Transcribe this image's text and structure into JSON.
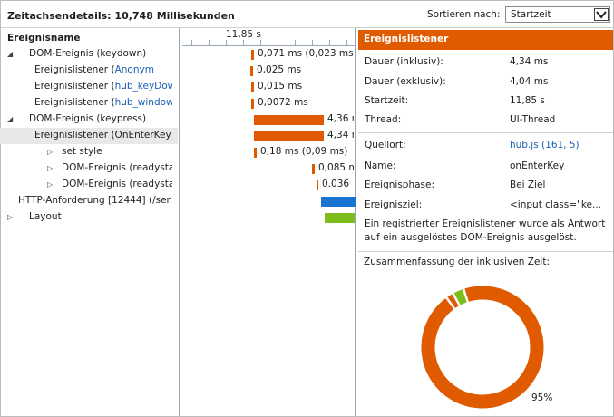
{
  "header": {
    "title": "Zeitachsendetails: 10,748 Millisekunden",
    "sort_label": "Sortieren nach:",
    "sort_value": "Startzeit"
  },
  "tree": {
    "column_header": "Ereignisname",
    "ruler_label": "11,85 s",
    "rows": [
      {
        "toggle": "◢",
        "indent": 0,
        "text": "DOM-Ereignis (keydown)",
        "link": "",
        "bar_label": "0,071 ms (0,023 ms)",
        "bar_color": "#e05a00"
      },
      {
        "toggle": "",
        "indent": 1,
        "text": "Ereignislistener (",
        "link": "Anonym",
        "bar_label": "0,025 ms",
        "bar_color": "#e05a00"
      },
      {
        "toggle": "",
        "indent": 1,
        "text": "Ereignislistener (",
        "link": "hub_keyDow...",
        "bar_label": "0,015 ms",
        "bar_color": "#e05a00"
      },
      {
        "toggle": "",
        "indent": 1,
        "text": "Ereignislistener (",
        "link": "hub_window...",
        "bar_label": "0,0072 ms",
        "bar_color": "#e05a00"
      },
      {
        "toggle": "◢",
        "indent": 0,
        "text": "DOM-Ereignis (keypress)",
        "link": "",
        "bar_label": "4,36 m",
        "bar_color": "#e05a00"
      },
      {
        "toggle": "",
        "indent": 1,
        "text": "Ereignislistener (OnEnterKey)",
        "link": "",
        "bar_label": "4,34 m",
        "bar_color": "#e05a00"
      },
      {
        "toggle": "▷",
        "indent": 2,
        "text": "set style",
        "link": "",
        "bar_label": "0,18 ms (0,09 ms)",
        "bar_color": "#e05a00"
      },
      {
        "toggle": "▷",
        "indent": 2,
        "text": "DOM-Ereignis (readystate...",
        "link": "",
        "bar_label": "0,085 m",
        "bar_color": "#e05a00"
      },
      {
        "toggle": "▷",
        "indent": 2,
        "text": "DOM-Ereignis (readystate...",
        "link": "",
        "bar_label": "0.036",
        "bar_color": "#e05a00"
      },
      {
        "toggle": "",
        "indent": 0,
        "text": "HTTP-Anforderung [12444] (/ser...",
        "link": "",
        "bar_label": "",
        "bar_color": "#1874d0"
      },
      {
        "toggle": "▷",
        "indent": 0,
        "text": "Layout",
        "link": "",
        "bar_label": "",
        "bar_color": "#7ebe1c"
      }
    ]
  },
  "details": {
    "title": "Ereignislistener",
    "timing": [
      {
        "key": "Dauer (inklusiv):",
        "value": "4,34 ms"
      },
      {
        "key": "Dauer (exklusiv):",
        "value": "4,04 ms"
      },
      {
        "key": "Startzeit:",
        "value": "11,85 s"
      },
      {
        "key": "Thread:",
        "value": "UI-Thread"
      }
    ],
    "source": [
      {
        "key": "Quellort:",
        "value": "hub.js (161, 5)",
        "link": true
      },
      {
        "key": "Name:",
        "value": "onEnterKey",
        "link": false
      },
      {
        "key": "Ereignisphase:",
        "value": "Bei Ziel",
        "link": false
      },
      {
        "key": "Ereignisziel:",
        "value": "<input class=\"ke...",
        "link": false
      }
    ],
    "description": "Ein registrierter Ereignislistener wurde als Antwort auf ein ausgelöstes DOM-Ereignis ausgelöst.",
    "summary_title": "Zusammenfassung der inklusiven Zeit:",
    "summary_percent_label": "95%",
    "donut": [
      {
        "value": 95,
        "color": "#e05a00"
      },
      {
        "value": 2,
        "color": "#e05a00"
      },
      {
        "value": 3,
        "color": "#7ebe1c"
      }
    ]
  }
}
